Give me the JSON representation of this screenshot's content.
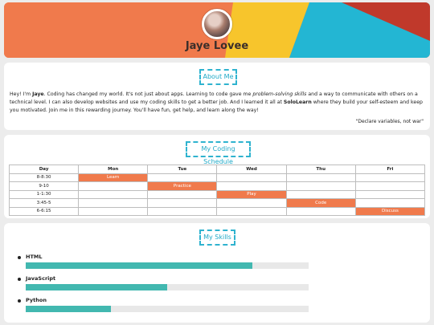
{
  "profile": {
    "name": "Jaye Lovee"
  },
  "about": {
    "title": "About Me",
    "p1": "Hey! I'm ",
    "p1_name": "Jaye",
    "p2": ". Coding has changed my world. It's not just about apps. Learning to code gave me ",
    "p2_em": "problem-solving skills",
    "p3": " and a way to communicate with others on a technical level. I can also develop websites and use my coding skills to get a better job. And I learned it all at ",
    "p3_brand": "SoloLearn",
    "p4": " where they build your self-esteem and keep you motivated. Join me in this rewarding journey. You'll have fun, get help, and learn along the way!",
    "quote": "\"Declare variables, not war\""
  },
  "schedule": {
    "title": "My Coding Schedule",
    "headers": [
      "Day",
      "Mon",
      "Tue",
      "Wed",
      "Thu",
      "Fri"
    ],
    "rows": [
      {
        "time": "8-8:30",
        "cells": [
          "Learn",
          "",
          "",
          "",
          ""
        ]
      },
      {
        "time": "9-10",
        "cells": [
          "",
          "Practice",
          "",
          "",
          ""
        ]
      },
      {
        "time": "1-1:30",
        "cells": [
          "",
          "",
          "Play",
          "",
          ""
        ]
      },
      {
        "time": "3:45-5",
        "cells": [
          "",
          "",
          "",
          "Code",
          ""
        ]
      },
      {
        "time": "6-6:15",
        "cells": [
          "",
          "",
          "",
          "",
          "Discuss"
        ]
      }
    ],
    "accent": "#f07a4c"
  },
  "skills": {
    "title": "My Skills",
    "items": [
      {
        "name": "HTML",
        "level": 0.8
      },
      {
        "name": "JavaScript",
        "level": 0.5
      },
      {
        "name": "Python",
        "level": 0.3
      }
    ],
    "bar_color": "#42b8b0"
  },
  "colors": {
    "orange": "#f07a4c",
    "yellow": "#f7c52c",
    "cyan": "#23b6d3",
    "red": "#c0392b"
  }
}
